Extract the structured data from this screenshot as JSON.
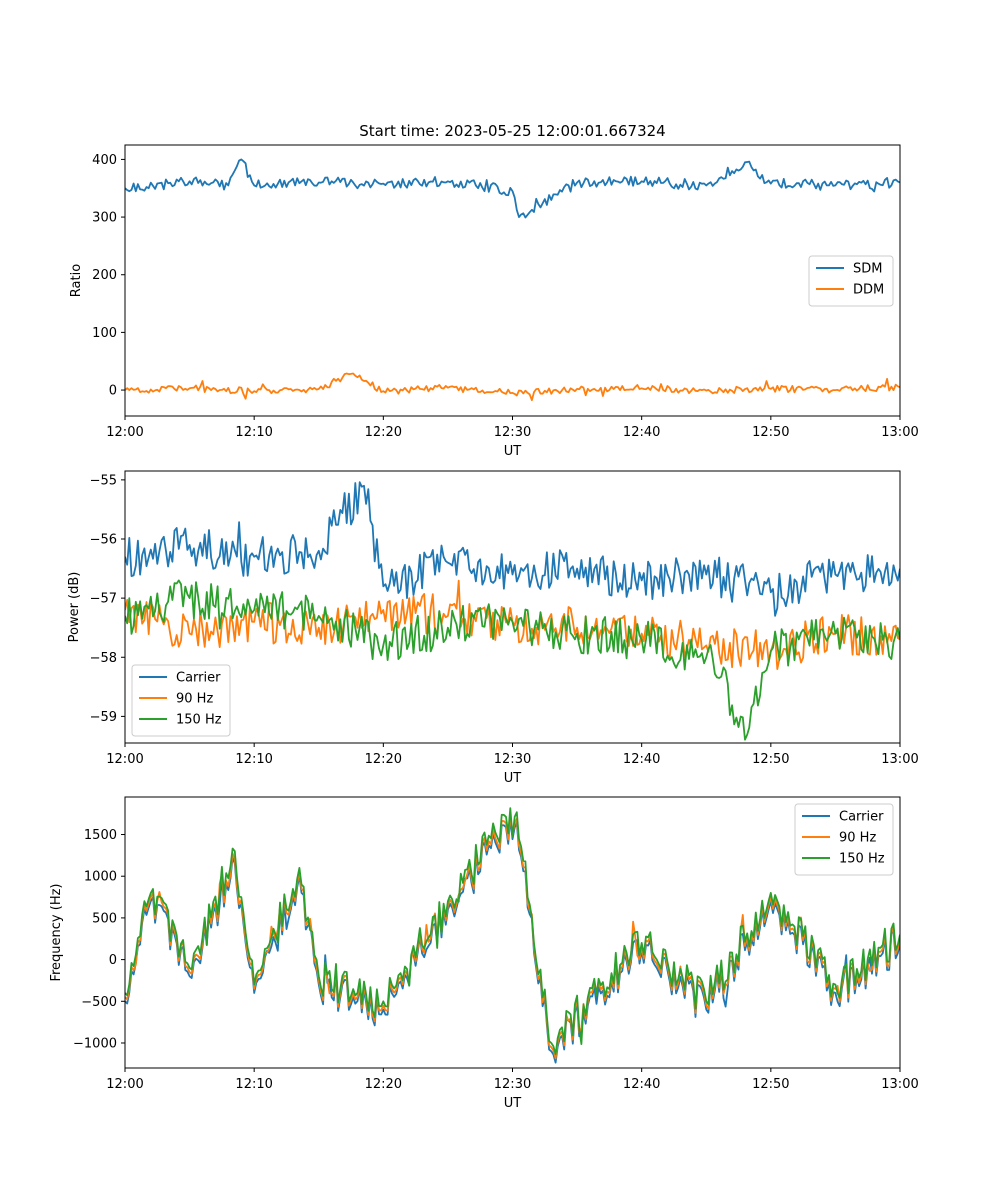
{
  "title": "Start time: 2023-05-25 12:00:01.667324",
  "chart_data": [
    {
      "type": "line",
      "xlabel": "UT",
      "ylabel": "Ratio",
      "xlim": [
        "12:00",
        "13:00"
      ],
      "ylim": [
        -45,
        425
      ],
      "xticks": [
        "12:00",
        "12:10",
        "12:20",
        "12:30",
        "12:40",
        "12:50",
        "13:00"
      ],
      "yticks": [
        0,
        100,
        200,
        300,
        400
      ],
      "ytick_labels": [
        "0",
        "100",
        "200",
        "300",
        "400"
      ],
      "legend_position": "center-right",
      "grid": false,
      "series": [
        {
          "name": "SDM",
          "color": "#1f77b4",
          "x": [
            "12:00",
            "12:05",
            "12:08",
            "12:09",
            "12:10",
            "12:15",
            "12:20",
            "12:25",
            "12:30",
            "12:30.5",
            "12:35",
            "12:40",
            "12:45",
            "12:48",
            "12:50",
            "12:55",
            "13:00"
          ],
          "y": [
            350,
            362,
            355,
            400,
            355,
            360,
            358,
            362,
            345,
            300,
            360,
            362,
            355,
            395,
            358,
            355,
            360
          ]
        },
        {
          "name": "DDM",
          "color": "#ff7f0e",
          "x": [
            "12:00",
            "12:05",
            "12:10",
            "12:15",
            "12:17.5",
            "12:20",
            "12:25",
            "12:30",
            "12:35",
            "12:40",
            "12:45",
            "12:50",
            "12:55",
            "13:00"
          ],
          "y": [
            0,
            3,
            -2,
            2,
            28,
            -2,
            4,
            -5,
            2,
            3,
            -1,
            2,
            0,
            5
          ]
        }
      ]
    },
    {
      "type": "line",
      "xlabel": "UT",
      "ylabel": "Power (dB)",
      "xlim": [
        "12:00",
        "13:00"
      ],
      "ylim": [
        -59.45,
        -54.85
      ],
      "xticks": [
        "12:00",
        "12:10",
        "12:20",
        "12:30",
        "12:40",
        "12:50",
        "13:00"
      ],
      "yticks": [
        -55,
        -56,
        -57,
        -58,
        -59
      ],
      "ytick_labels": [
        "−55",
        "−56",
        "−57",
        "−58",
        "−59"
      ],
      "legend_position": "lower-left",
      "grid": false,
      "series": [
        {
          "name": "Carrier",
          "color": "#1f77b4",
          "x": [
            "12:00",
            "12:05",
            "12:10",
            "12:15",
            "12:18.5",
            "12:20",
            "12:25",
            "12:30",
            "12:35",
            "12:40",
            "12:45",
            "12:50",
            "12:55",
            "13:00"
          ],
          "y": [
            -56.3,
            -56.1,
            -56.3,
            -56.2,
            -55.1,
            -56.8,
            -56.4,
            -56.6,
            -56.5,
            -56.7,
            -56.6,
            -56.9,
            -56.6,
            -56.5
          ]
        },
        {
          "name": "90 Hz",
          "color": "#ff7f0e",
          "x": [
            "12:00",
            "12:05",
            "12:10",
            "12:15",
            "12:20",
            "12:25",
            "12:30",
            "12:35",
            "12:40",
            "12:45",
            "12:50",
            "12:55",
            "13:00"
          ],
          "y": [
            -57.2,
            -57.6,
            -57.4,
            -57.5,
            -57.2,
            -57.3,
            -57.4,
            -57.5,
            -57.6,
            -57.8,
            -57.9,
            -57.6,
            -57.7
          ]
        },
        {
          "name": "150 Hz",
          "color": "#2ca02c",
          "x": [
            "12:00",
            "12:05",
            "12:10",
            "12:15",
            "12:20",
            "12:25",
            "12:30",
            "12:35",
            "12:40",
            "12:45",
            "12:48.3",
            "12:50",
            "12:55",
            "13:00"
          ],
          "y": [
            -57.3,
            -57.0,
            -57.2,
            -57.3,
            -57.8,
            -57.5,
            -57.4,
            -57.6,
            -57.7,
            -58.0,
            -59.2,
            -57.9,
            -57.6,
            -57.7
          ]
        }
      ]
    },
    {
      "type": "line",
      "xlabel": "UT",
      "ylabel": "Frequency (Hz)",
      "xlim": [
        "12:00",
        "13:00"
      ],
      "ylim": [
        -1300,
        1950
      ],
      "xticks": [
        "12:00",
        "12:10",
        "12:20",
        "12:30",
        "12:40",
        "12:50",
        "13:00"
      ],
      "yticks": [
        1500,
        1000,
        500,
        0,
        -500,
        -1000
      ],
      "ytick_labels": [
        "1500",
        "1000",
        "500",
        "0",
        "−500",
        "−1000"
      ],
      "legend_position": "top-right",
      "grid": false,
      "series": [
        {
          "name": "Carrier",
          "color": "#1f77b4",
          "x": [
            "12:00",
            "12:02",
            "12:05",
            "12:08.5",
            "12:10",
            "12:13.5",
            "12:15",
            "12:20",
            "12:25",
            "12:30.3",
            "12:33",
            "12:40",
            "12:45",
            "12:50",
            "12:55",
            "13:00"
          ],
          "y": [
            -500,
            700,
            -200,
            1150,
            -400,
            1000,
            -300,
            -600,
            600,
            1700,
            -1100,
            100,
            -600,
            700,
            -400,
            200
          ]
        },
        {
          "name": "90 Hz",
          "color": "#ff7f0e",
          "x": [
            "12:00",
            "12:02",
            "12:05",
            "12:08.5",
            "12:10",
            "12:13.5",
            "12:15",
            "12:20",
            "12:25",
            "12:30.3",
            "12:33",
            "12:40",
            "12:45",
            "12:50",
            "12:55",
            "13:00"
          ],
          "y": [
            -450,
            750,
            -150,
            1200,
            -350,
            1050,
            -250,
            -550,
            650,
            1750,
            -1050,
            150,
            -550,
            750,
            -350,
            250
          ]
        },
        {
          "name": "150 Hz",
          "color": "#2ca02c",
          "x": [
            "12:00",
            "12:02",
            "12:05",
            "12:08.5",
            "12:10",
            "12:13.5",
            "12:15",
            "12:20",
            "12:25",
            "12:30.3",
            "12:33",
            "12:40",
            "12:45",
            "12:50",
            "12:55",
            "13:00"
          ],
          "y": [
            -400,
            800,
            -100,
            1300,
            -300,
            1100,
            -200,
            -500,
            700,
            1830,
            -1000,
            200,
            -500,
            800,
            -300,
            300
          ]
        }
      ]
    }
  ]
}
